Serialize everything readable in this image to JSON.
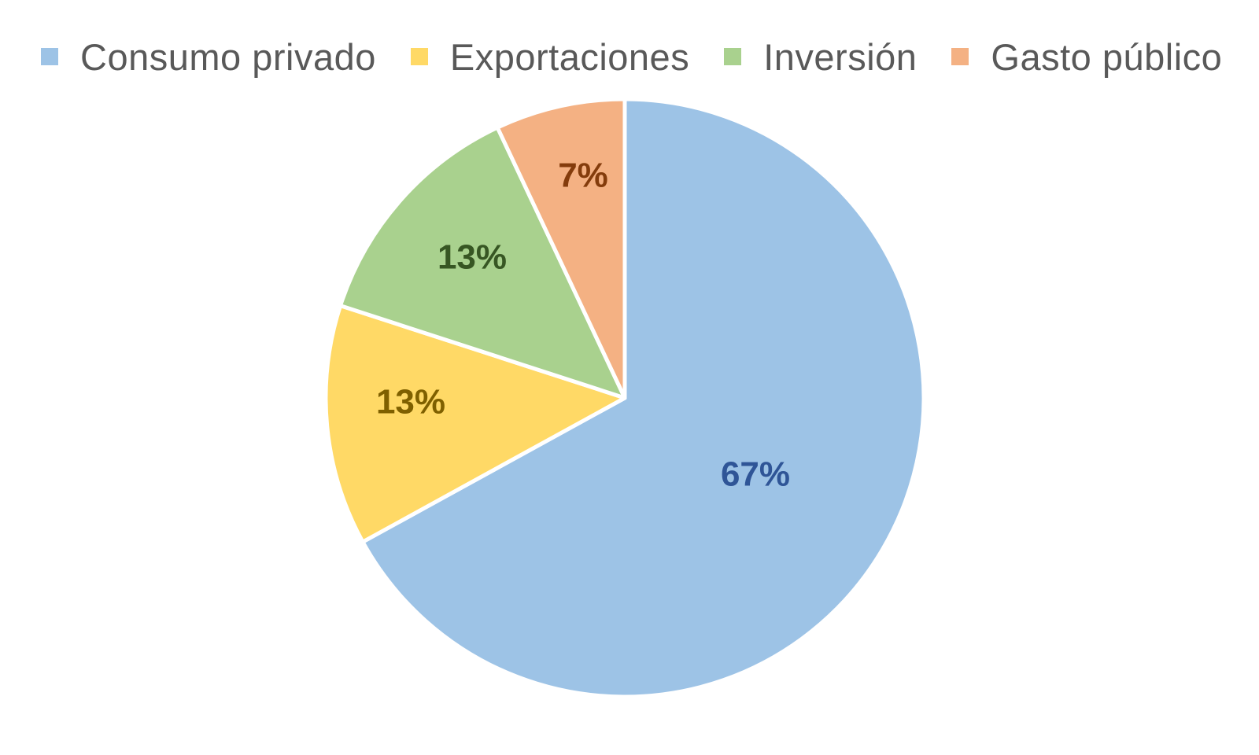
{
  "chart_data": {
    "type": "pie",
    "title": "",
    "legend_position": "top",
    "start_angle_deg": 0,
    "direction": "clockwise",
    "slices": [
      {
        "name": "Consumo privado",
        "value": 67,
        "label": "67%",
        "color": "#9DC3E6",
        "label_color": "#2F5597"
      },
      {
        "name": "Exportaciones",
        "value": 13,
        "label": "13%",
        "color": "#FFD966",
        "label_color": "#7F6000"
      },
      {
        "name": "Inversión",
        "value": 13,
        "label": "13%",
        "color": "#A9D18E",
        "label_color": "#375623"
      },
      {
        "name": "Gasto público",
        "value": 7,
        "label": "7%",
        "color": "#F4B183",
        "label_color": "#843C0C"
      }
    ]
  }
}
